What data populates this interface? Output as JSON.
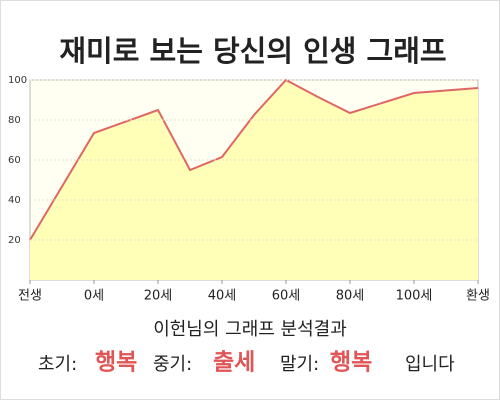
{
  "chart_data": {
    "type": "area",
    "title": "재미로 보는 당신의 인생 그래프",
    "x": [
      -20,
      0,
      20,
      30,
      40,
      50,
      60,
      70,
      80,
      100,
      120
    ],
    "series": [
      {
        "name": null,
        "color": "#e06666",
        "fill": "#ffffb8",
        "values": [
          20,
          73.5,
          85,
          55,
          61.5,
          82.5,
          100,
          91.5,
          83.5,
          93.5,
          96
        ]
      }
    ],
    "xlim": [
      -20,
      120
    ],
    "xticks": [
      {
        "value": -20,
        "label": "전생"
      },
      {
        "value": 0,
        "label": "0세"
      },
      {
        "value": 20,
        "label": "20세"
      },
      {
        "value": 40,
        "label": "40세"
      },
      {
        "value": 60,
        "label": "60세"
      },
      {
        "value": 80,
        "label": "80세"
      },
      {
        "value": 100,
        "label": "100세"
      },
      {
        "value": 120,
        "label": "환생"
      }
    ],
    "ylim": [
      0,
      100
    ],
    "yticks": [
      20,
      40,
      60,
      80,
      100
    ],
    "grid": true,
    "annotations": {
      "heading": "이헌님의 그래프 분석결과",
      "summary": [
        "초기:",
        "행복",
        "중기:",
        "출세",
        "말기:",
        "행복",
        "입니다"
      ]
    }
  }
}
